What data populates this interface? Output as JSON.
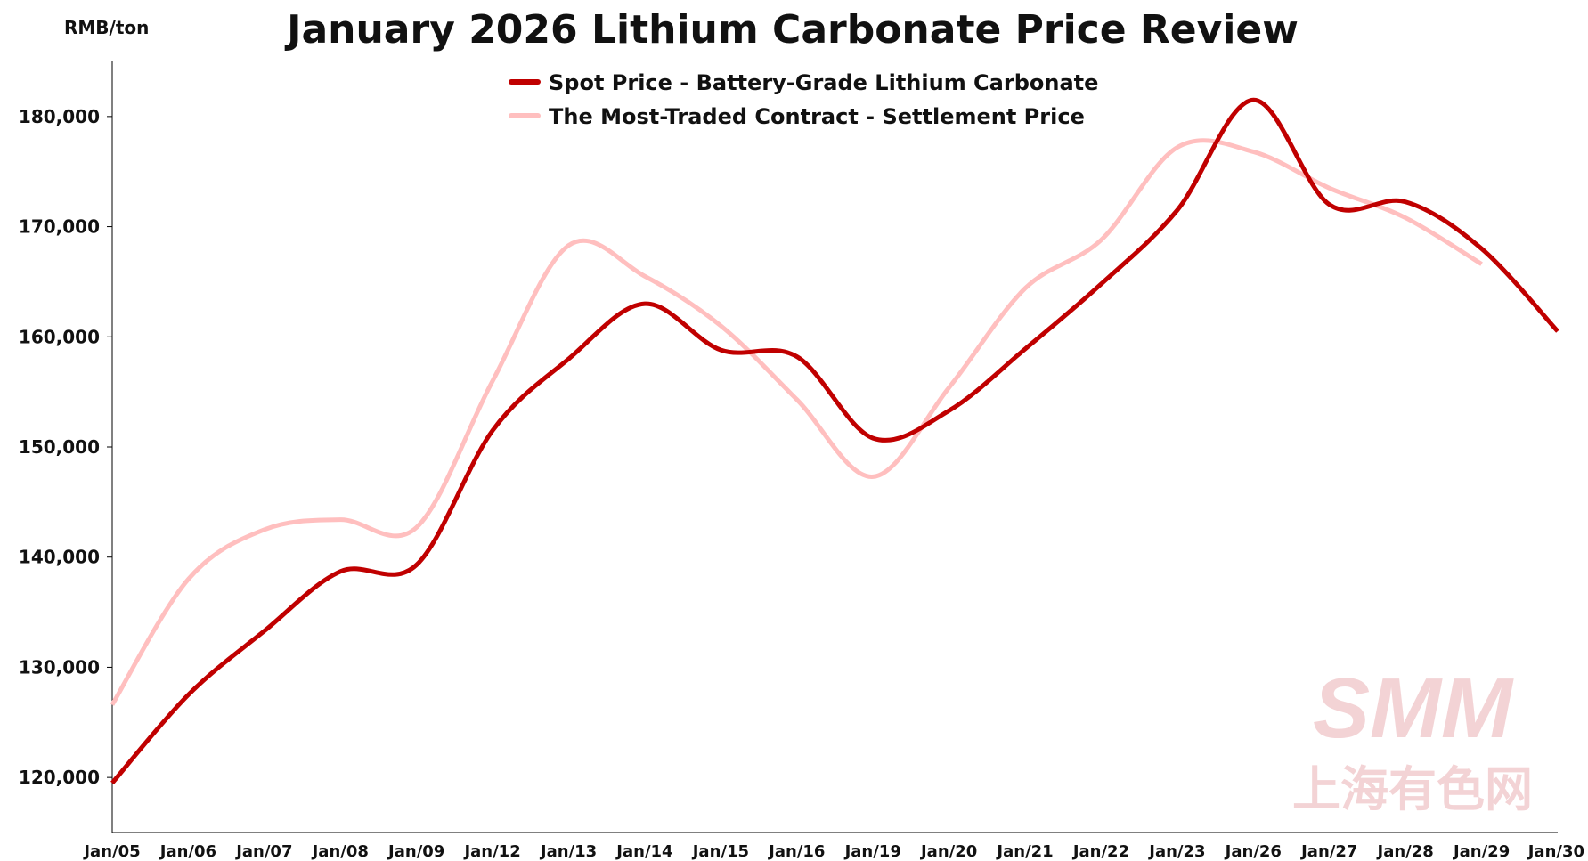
{
  "chart_data": {
    "type": "line",
    "title": "January 2026 Lithium Carbonate Price Review",
    "ylabel": "RMB/ton",
    "xlabel": "",
    "ylim": [
      115000,
      185000
    ],
    "yticks": [
      120000,
      130000,
      140000,
      150000,
      160000,
      170000,
      180000
    ],
    "ytick_labels": [
      "120,000",
      "130,000",
      "140,000",
      "150,000",
      "160,000",
      "170,000",
      "180,000"
    ],
    "grid": false,
    "legend_position": "top-center",
    "categories": [
      "Jan/05",
      "Jan/06",
      "Jan/07",
      "Jan/08",
      "Jan/09",
      "Jan/12",
      "Jan/13",
      "Jan/14",
      "Jan/15",
      "Jan/16",
      "Jan/19",
      "Jan/20",
      "Jan/21",
      "Jan/22",
      "Jan/23",
      "Jan/26",
      "Jan/27",
      "Jan/28",
      "Jan/29",
      "Jan/30"
    ],
    "series": [
      {
        "name": "Spot Price - Battery-Grade Lithium Carbonate",
        "color": "#c00000",
        "values": [
          119500,
          127500,
          133300,
          138700,
          139300,
          151500,
          158000,
          163000,
          158800,
          158200,
          150800,
          153300,
          158900,
          164800,
          171500,
          181500,
          172000,
          172250,
          168000,
          160500
        ]
      },
      {
        "name": "The Most-Traded Contract - Settlement Price",
        "color": "#ffbfbf",
        "values": [
          126600,
          138000,
          142500,
          143400,
          142700,
          156000,
          168300,
          165500,
          161000,
          154300,
          147300,
          155400,
          164400,
          168800,
          177200,
          176800,
          173500,
          170800,
          166600,
          null
        ]
      }
    ]
  },
  "watermark": {
    "logo": "SMM",
    "subtitle": "上海有色网",
    "color": "#f3d3d5"
  }
}
